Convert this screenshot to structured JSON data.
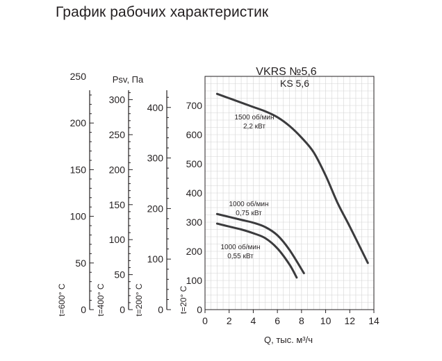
{
  "page": {
    "title": "График рабочих характеристик"
  },
  "chart_data": {
    "type": "line",
    "title": "VKRS №5,6",
    "subtitle": "KS 5,6",
    "xlabel": "Q, тыс. м³/ч",
    "ylabel": "Psv, Па",
    "xlim": [
      0,
      14
    ],
    "xticks": [
      "0",
      "2",
      "4",
      "6",
      "8",
      "10",
      "12",
      "14"
    ],
    "ylim": [
      0,
      800
    ],
    "yticks": [
      "100",
      "200",
      "300",
      "400",
      "500",
      "600",
      "700"
    ],
    "grid": true,
    "density_axes": [
      {
        "name": "t=600° C",
        "max": 250,
        "ticks": [
          "0",
          "50",
          "100",
          "150",
          "200",
          "250"
        ]
      },
      {
        "name": "t=400° C",
        "max": 333.3,
        "ticks": [
          "0",
          "50",
          "100",
          "150",
          "200",
          "250",
          "300"
        ]
      },
      {
        "name": "t=200° C",
        "max": 461.5,
        "ticks": [
          "0",
          "100",
          "200",
          "300",
          "400"
        ]
      },
      {
        "name": "t=20° C",
        "max": 800,
        "ticks": [
          "0"
        ]
      }
    ],
    "series": [
      {
        "name": "1500 об/мин",
        "power": "2,2 кВт",
        "x": [
          1,
          2,
          3,
          4,
          5,
          6,
          7,
          8,
          9,
          10,
          11,
          12,
          13.5
        ],
        "y": [
          740,
          725,
          710,
          695,
          680,
          660,
          630,
          590,
          540,
          460,
          365,
          285,
          160
        ]
      },
      {
        "name": "1000 об/мин",
        "power": "0,75 кВт",
        "x": [
          1,
          2,
          3,
          4,
          5,
          6,
          7,
          8.2
        ],
        "y": [
          328,
          318,
          308,
          298,
          283,
          255,
          205,
          125
        ]
      },
      {
        "name": "1000 об/мин",
        "power": "0,55 кВт",
        "x": [
          1,
          2,
          3,
          4,
          5,
          6,
          7,
          7.6
        ],
        "y": [
          295,
          285,
          275,
          262,
          245,
          210,
          155,
          110
        ]
      }
    ]
  }
}
